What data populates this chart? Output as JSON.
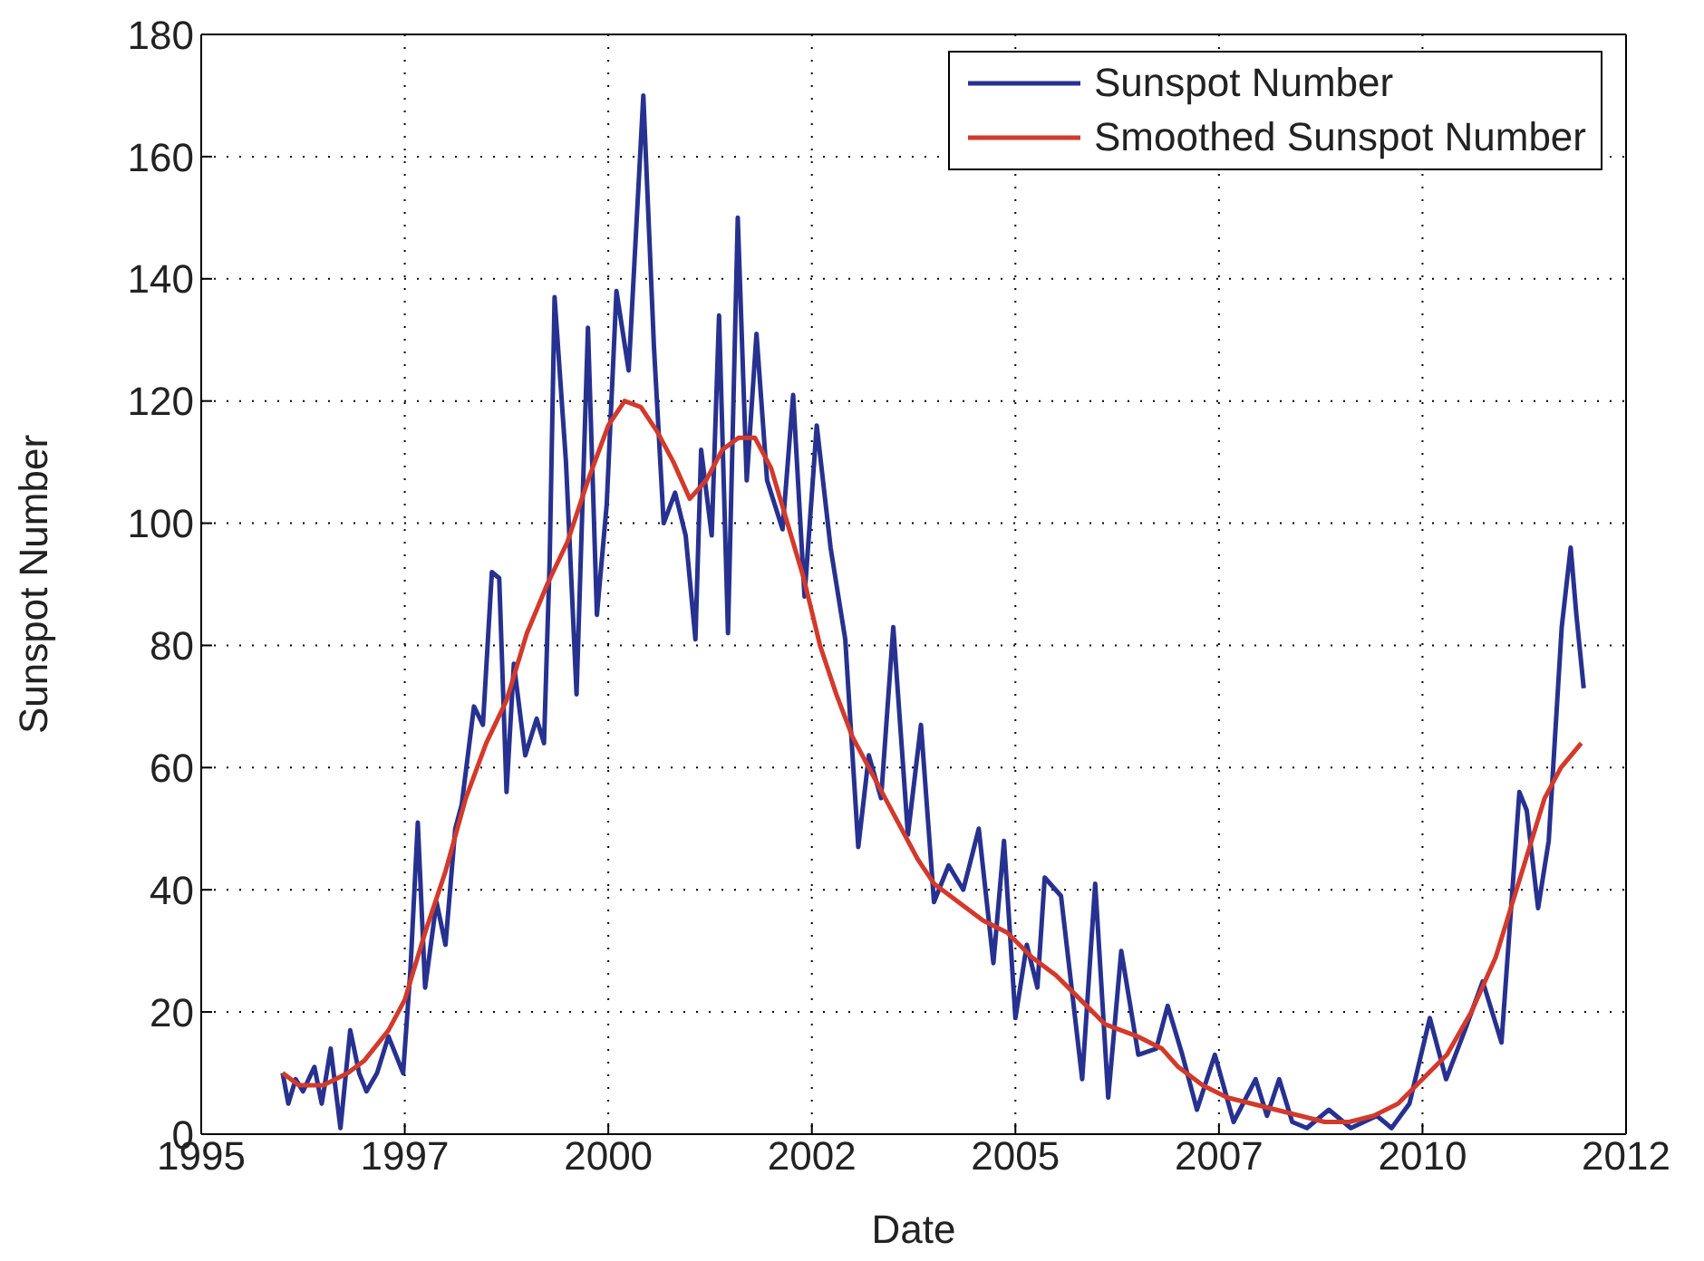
{
  "chart_data": {
    "type": "line",
    "xlabel": "Date",
    "ylabel": "Sunspot Number",
    "xlim": [
      1995,
      2012.5
    ],
    "xticks": [
      1995,
      {
        "value": 1997.5,
        "label": "1997"
      },
      2000,
      {
        "value": 2002.5,
        "label": "2002"
      },
      2005,
      {
        "value": 2007.5,
        "label": "2007"
      },
      2010,
      {
        "value": 2012.5,
        "label": "2012"
      }
    ],
    "ylim": [
      0,
      180
    ],
    "yticks": [
      0,
      20,
      40,
      60,
      80,
      100,
      120,
      140,
      160,
      180
    ],
    "grid": true,
    "legend": "top right",
    "marker": "none",
    "line_style": "solid",
    "series": [
      {
        "name": "Sunspot Number",
        "color": "#27318f",
        "x": [
          1996.0,
          1996.07,
          1996.16,
          1996.25,
          1996.39,
          1996.48,
          1996.59,
          1996.71,
          1996.83,
          1996.94,
          1997.03,
          1997.16,
          1997.3,
          1997.48,
          1997.57,
          1997.66,
          1997.75,
          1997.89,
          1998.0,
          1998.12,
          1998.2,
          1998.35,
          1998.46,
          1998.57,
          1998.66,
          1998.75,
          1998.84,
          1998.98,
          1999.12,
          1999.21,
          1999.28,
          1999.34,
          1999.48,
          1999.61,
          1999.75,
          1999.86,
          1999.98,
          2000.1,
          2000.25,
          2000.43,
          2000.56,
          2000.68,
          2000.82,
          2000.95,
          2001.07,
          2001.14,
          2001.27,
          2001.36,
          2001.47,
          2001.59,
          2001.7,
          2001.82,
          2001.95,
          2002.14,
          2002.27,
          2002.41,
          2002.56,
          2002.73,
          2002.91,
          2003.07,
          2003.2,
          2003.35,
          2003.5,
          2003.68,
          2003.84,
          2004.0,
          2004.18,
          2004.36,
          2004.55,
          2004.73,
          2004.86,
          2005.0,
          2005.14,
          2005.27,
          2005.36,
          2005.56,
          2005.82,
          2005.98,
          2006.14,
          2006.3,
          2006.51,
          2006.73,
          2006.87,
          2007.05,
          2007.23,
          2007.45,
          2007.68,
          2007.95,
          2008.09,
          2008.24,
          2008.4,
          2008.58,
          2008.85,
          2009.12,
          2009.44,
          2009.62,
          2009.84,
          2010.09,
          2010.29,
          2010.52,
          2010.74,
          2010.97,
          2011.19,
          2011.28,
          2011.42,
          2011.55,
          2011.71,
          2011.82,
          2011.89,
          2011.98
        ],
        "values": [
          10,
          5,
          9,
          7,
          11,
          5,
          14,
          1,
          17,
          10,
          7,
          10,
          16,
          10,
          27,
          51,
          24,
          38,
          31,
          50,
          54,
          70,
          67,
          92,
          91,
          56,
          77,
          62,
          68,
          64,
          94,
          137,
          110,
          72,
          132,
          85,
          103,
          138,
          125,
          170,
          129,
          100,
          105,
          98,
          81,
          112,
          98,
          134,
          82,
          150,
          107,
          131,
          107,
          99,
          121,
          88,
          116,
          96,
          81,
          47,
          62,
          55,
          83,
          49,
          67,
          38,
          44,
          40,
          50,
          28,
          48,
          19,
          31,
          24,
          42,
          39,
          9,
          41,
          6,
          30,
          13,
          14,
          21,
          13,
          4,
          13,
          2,
          9,
          3,
          9,
          2,
          1,
          4,
          1,
          3,
          1,
          5,
          19,
          9,
          17,
          25,
          15,
          56,
          53,
          37,
          48,
          83,
          96,
          85,
          73
        ]
      },
      {
        "name": "Smoothed Sunspot Number",
        "color": "#d23a2c",
        "x": [
          1996.0,
          1996.2,
          1996.5,
          1996.8,
          1997.0,
          1997.3,
          1997.5,
          1997.75,
          1998.0,
          1998.25,
          1998.5,
          1998.75,
          1999.0,
          1999.25,
          1999.5,
          1999.75,
          2000.0,
          2000.2,
          2000.4,
          2000.6,
          2000.8,
          2001.0,
          2001.2,
          2001.4,
          2001.6,
          2001.8,
          2002.0,
          2002.2,
          2002.4,
          2002.6,
          2002.8,
          2003.0,
          2003.2,
          2003.4,
          2003.6,
          2003.8,
          2004.0,
          2004.3,
          2004.6,
          2004.9,
          2005.2,
          2005.5,
          2005.8,
          2006.1,
          2006.5,
          2006.8,
          2007.0,
          2007.3,
          2007.6,
          2007.9,
          2008.2,
          2008.5,
          2008.8,
          2009.1,
          2009.4,
          2009.7,
          2010.0,
          2010.3,
          2010.6,
          2010.9,
          2011.2,
          2011.5,
          2011.7,
          2011.95
        ],
        "values": [
          10,
          8,
          8,
          10,
          12,
          17,
          22,
          33,
          43,
          55,
          64,
          71,
          82,
          90,
          97,
          107,
          116,
          120,
          119,
          115,
          110,
          104,
          107,
          112,
          114,
          114,
          109,
          100,
          91,
          80,
          72,
          65,
          60,
          55,
          50,
          45,
          41,
          38,
          35,
          33,
          29,
          26,
          22,
          18,
          16,
          14,
          11,
          8,
          6,
          5,
          4,
          3,
          2,
          2,
          3,
          5,
          9,
          13,
          20,
          29,
          42,
          55,
          60,
          64
        ]
      }
    ]
  }
}
